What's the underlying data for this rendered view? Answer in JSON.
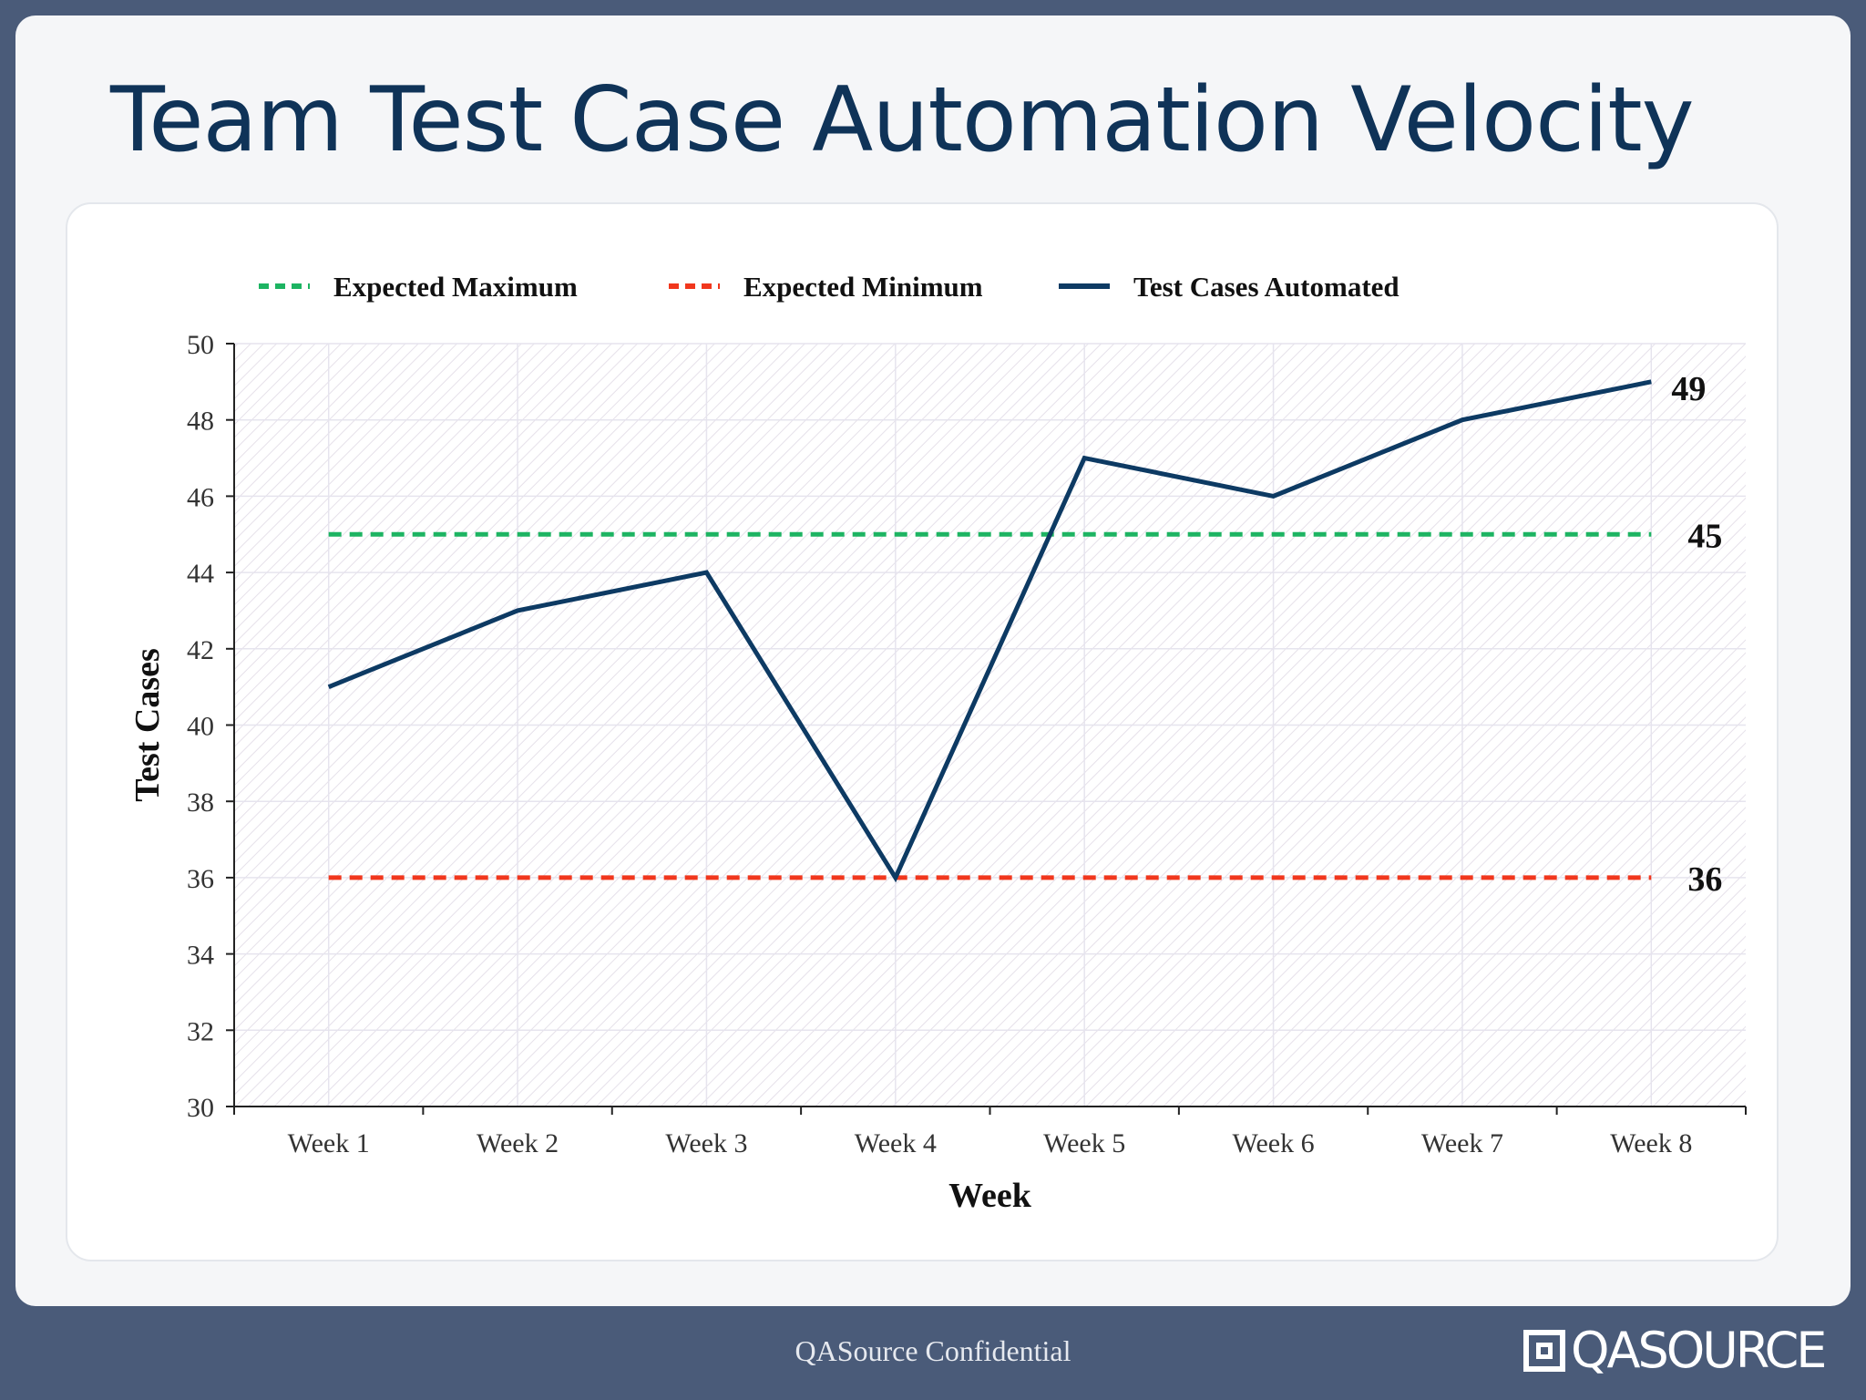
{
  "slide": {
    "title": "Team Test Case Automation Velocity",
    "footer": "QASource Confidential",
    "logo_text": "QASOURCE"
  },
  "colors": {
    "background": "#4a5b79",
    "title": "#0f3358",
    "actual_line": "#0d3a63",
    "expected_max": "#1db462",
    "expected_min": "#f1371d"
  },
  "chart_data": {
    "type": "line",
    "title": "",
    "xlabel": "Week",
    "ylabel": "Test Cases",
    "categories": [
      "Week 1",
      "Week 2",
      "Week 3",
      "Week 4",
      "Week 5",
      "Week 6",
      "Week 7",
      "Week 8"
    ],
    "ylim": [
      30,
      50
    ],
    "yticks": [
      30,
      32,
      34,
      36,
      38,
      40,
      42,
      44,
      46,
      48,
      50
    ],
    "grid": true,
    "legend_position": "top",
    "series": [
      {
        "name": "Expected Maximum",
        "values": [
          45,
          45,
          45,
          45,
          45,
          45,
          45,
          45
        ],
        "style": "dashed",
        "color": "#1db462",
        "end_label": "45"
      },
      {
        "name": "Expected Minimum",
        "values": [
          36,
          36,
          36,
          36,
          36,
          36,
          36,
          36
        ],
        "style": "dashed",
        "color": "#f1371d",
        "end_label": "36"
      },
      {
        "name": "Test Cases Automated",
        "values": [
          41,
          43,
          44,
          36,
          47,
          46,
          48,
          49
        ],
        "style": "solid",
        "color": "#0d3a63",
        "end_label": "49"
      }
    ]
  }
}
